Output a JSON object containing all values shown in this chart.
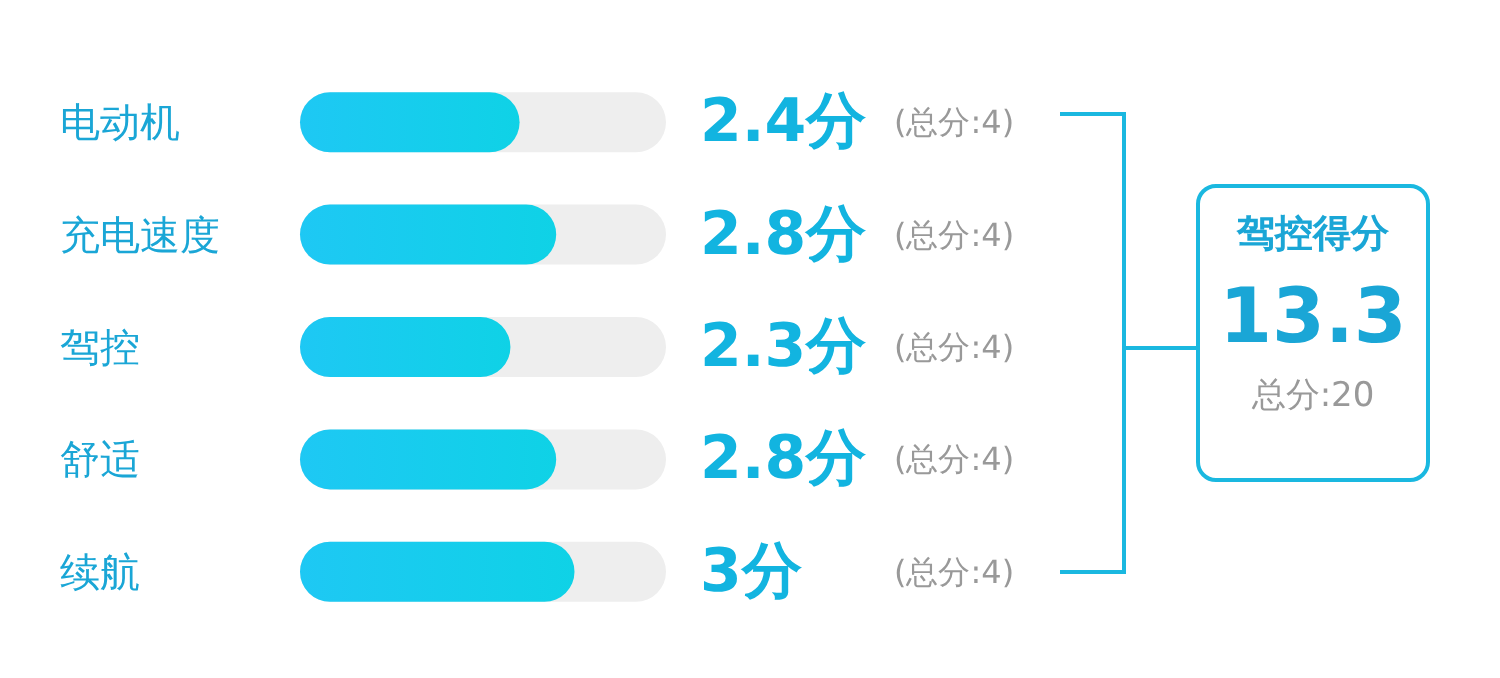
{
  "chart_data": {
    "type": "bar",
    "orientation": "horizontal",
    "categories": [
      "电动机",
      "充电速度",
      "驾控",
      "舒适",
      "续航"
    ],
    "values": [
      2.4,
      2.8,
      2.3,
      2.8,
      3
    ],
    "value_labels": [
      "2.4分",
      "2.8分",
      "2.3分",
      "2.8分",
      "3分"
    ],
    "color": "#0fd2e6",
    "xlim": [
      0,
      4
    ],
    "tick_labels": "y",
    "annotations": [
      "(总分:4)",
      "(总分:4)",
      "(总分:4)",
      "(总分:4)",
      "(总分:4)",
      "驾控得分",
      "13.3",
      "总分:20"
    ]
  }
}
